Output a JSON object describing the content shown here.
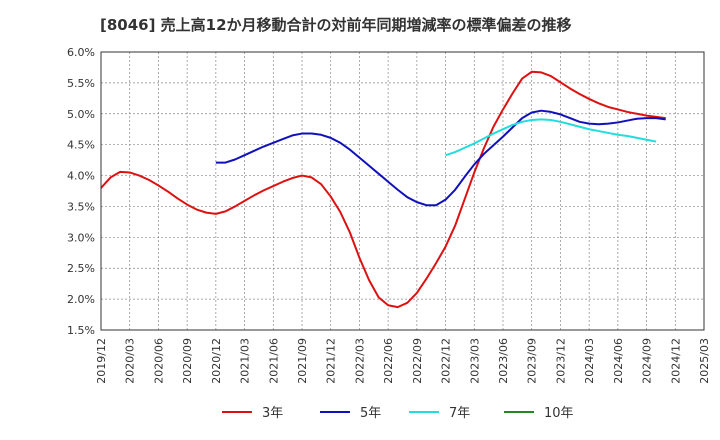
{
  "chart_data": {
    "type": "line",
    "title": "[8046]  売上高12か月移動合計の対前年同期増減率の標準偏差の推移",
    "xlabel": "",
    "ylabel": "",
    "x_ticks": [
      "2019/12",
      "2020/03",
      "2020/06",
      "2020/09",
      "2020/12",
      "2021/03",
      "2021/06",
      "2021/09",
      "2021/12",
      "2022/03",
      "2022/06",
      "2022/09",
      "2022/12",
      "2023/03",
      "2023/06",
      "2023/09",
      "2023/12",
      "2024/03",
      "2024/06",
      "2024/09",
      "2024/12",
      "2025/03"
    ],
    "x_range": [
      "2019/12",
      "2025/03"
    ],
    "y_ticks": [
      "1.5%",
      "2.0%",
      "2.5%",
      "3.0%",
      "3.5%",
      "4.0%",
      "4.5%",
      "5.0%",
      "5.5%",
      "6.0%"
    ],
    "ylim": [
      1.5,
      6.0
    ],
    "grid": true,
    "legend_position": "bottom",
    "series": [
      {
        "name": "3年",
        "color": "#dd1111",
        "points": [
          [
            "2019/12",
            3.8
          ],
          [
            "2020/01",
            3.97
          ],
          [
            "2020/02",
            4.06
          ],
          [
            "2020/03",
            4.05
          ],
          [
            "2020/04",
            4.0
          ],
          [
            "2020/05",
            3.93
          ],
          [
            "2020/06",
            3.84
          ],
          [
            "2020/07",
            3.74
          ],
          [
            "2020/08",
            3.63
          ],
          [
            "2020/09",
            3.53
          ],
          [
            "2020/10",
            3.45
          ],
          [
            "2020/11",
            3.4
          ],
          [
            "2020/12",
            3.38
          ],
          [
            "2021/01",
            3.42
          ],
          [
            "2021/02",
            3.5
          ],
          [
            "2021/03",
            3.59
          ],
          [
            "2021/04",
            3.68
          ],
          [
            "2021/05",
            3.76
          ],
          [
            "2021/06",
            3.83
          ],
          [
            "2021/07",
            3.9
          ],
          [
            "2021/08",
            3.96
          ],
          [
            "2021/09",
            4.0
          ],
          [
            "2021/10",
            3.97
          ],
          [
            "2021/11",
            3.86
          ],
          [
            "2021/12",
            3.66
          ],
          [
            "2022/01",
            3.41
          ],
          [
            "2022/02",
            3.08
          ],
          [
            "2022/03",
            2.67
          ],
          [
            "2022/04",
            2.31
          ],
          [
            "2022/05",
            2.03
          ],
          [
            "2022/06",
            1.9
          ],
          [
            "2022/07",
            1.87
          ],
          [
            "2022/08",
            1.94
          ],
          [
            "2022/09",
            2.1
          ],
          [
            "2022/10",
            2.33
          ],
          [
            "2022/11",
            2.58
          ],
          [
            "2022/12",
            2.85
          ],
          [
            "2023/01",
            3.19
          ],
          [
            "2023/02",
            3.62
          ],
          [
            "2023/03",
            4.05
          ],
          [
            "2023/04",
            4.44
          ],
          [
            "2023/05",
            4.79
          ],
          [
            "2023/06",
            5.07
          ],
          [
            "2023/07",
            5.33
          ],
          [
            "2023/08",
            5.57
          ],
          [
            "2023/09",
            5.68
          ],
          [
            "2023/10",
            5.67
          ],
          [
            "2023/11",
            5.61
          ],
          [
            "2023/12",
            5.51
          ],
          [
            "2024/01",
            5.41
          ],
          [
            "2024/02",
            5.32
          ],
          [
            "2024/03",
            5.24
          ],
          [
            "2024/04",
            5.17
          ],
          [
            "2024/05",
            5.11
          ],
          [
            "2024/06",
            5.07
          ],
          [
            "2024/07",
            5.03
          ],
          [
            "2024/08",
            5.0
          ],
          [
            "2024/09",
            4.97
          ],
          [
            "2024/10",
            4.95
          ],
          [
            "2024/11",
            4.93
          ]
        ]
      },
      {
        "name": "5年",
        "color": "#1111bb",
        "points": [
          [
            "2020/12",
            4.21
          ],
          [
            "2021/01",
            4.21
          ],
          [
            "2021/02",
            4.26
          ],
          [
            "2021/03",
            4.33
          ],
          [
            "2021/04",
            4.4
          ],
          [
            "2021/05",
            4.47
          ],
          [
            "2021/06",
            4.53
          ],
          [
            "2021/07",
            4.59
          ],
          [
            "2021/08",
            4.65
          ],
          [
            "2021/09",
            4.68
          ],
          [
            "2021/10",
            4.68
          ],
          [
            "2021/11",
            4.66
          ],
          [
            "2021/12",
            4.61
          ],
          [
            "2022/01",
            4.53
          ],
          [
            "2022/02",
            4.42
          ],
          [
            "2022/03",
            4.29
          ],
          [
            "2022/04",
            4.16
          ],
          [
            "2022/05",
            4.03
          ],
          [
            "2022/06",
            3.9
          ],
          [
            "2022/07",
            3.77
          ],
          [
            "2022/08",
            3.65
          ],
          [
            "2022/09",
            3.57
          ],
          [
            "2022/10",
            3.52
          ],
          [
            "2022/11",
            3.52
          ],
          [
            "2022/12",
            3.61
          ],
          [
            "2023/01",
            3.77
          ],
          [
            "2023/02",
            3.98
          ],
          [
            "2023/03",
            4.18
          ],
          [
            "2023/04",
            4.35
          ],
          [
            "2023/05",
            4.49
          ],
          [
            "2023/06",
            4.63
          ],
          [
            "2023/07",
            4.78
          ],
          [
            "2023/08",
            4.93
          ],
          [
            "2023/09",
            5.02
          ],
          [
            "2023/10",
            5.05
          ],
          [
            "2023/11",
            5.03
          ],
          [
            "2023/12",
            4.99
          ],
          [
            "2024/01",
            4.93
          ],
          [
            "2024/02",
            4.87
          ],
          [
            "2024/03",
            4.84
          ],
          [
            "2024/04",
            4.83
          ],
          [
            "2024/05",
            4.84
          ],
          [
            "2024/06",
            4.86
          ],
          [
            "2024/07",
            4.89
          ],
          [
            "2024/08",
            4.92
          ],
          [
            "2024/09",
            4.93
          ],
          [
            "2024/10",
            4.93
          ],
          [
            "2024/11",
            4.91
          ]
        ]
      },
      {
        "name": "7年",
        "color": "#22dddd",
        "points": [
          [
            "2022/12",
            4.33
          ],
          [
            "2023/01",
            4.38
          ],
          [
            "2023/02",
            4.45
          ],
          [
            "2023/03",
            4.52
          ],
          [
            "2023/04",
            4.6
          ],
          [
            "2023/05",
            4.68
          ],
          [
            "2023/06",
            4.75
          ],
          [
            "2023/07",
            4.82
          ],
          [
            "2023/08",
            4.87
          ],
          [
            "2023/09",
            4.9
          ],
          [
            "2023/10",
            4.91
          ],
          [
            "2023/11",
            4.9
          ],
          [
            "2023/12",
            4.87
          ],
          [
            "2024/01",
            4.83
          ],
          [
            "2024/02",
            4.79
          ],
          [
            "2024/03",
            4.75
          ],
          [
            "2024/04",
            4.72
          ],
          [
            "2024/05",
            4.69
          ],
          [
            "2024/06",
            4.66
          ],
          [
            "2024/07",
            4.64
          ],
          [
            "2024/08",
            4.61
          ],
          [
            "2024/09",
            4.58
          ],
          [
            "2024/10",
            4.55
          ]
        ]
      },
      {
        "name": "10年",
        "color": "#228822",
        "points": []
      }
    ]
  }
}
